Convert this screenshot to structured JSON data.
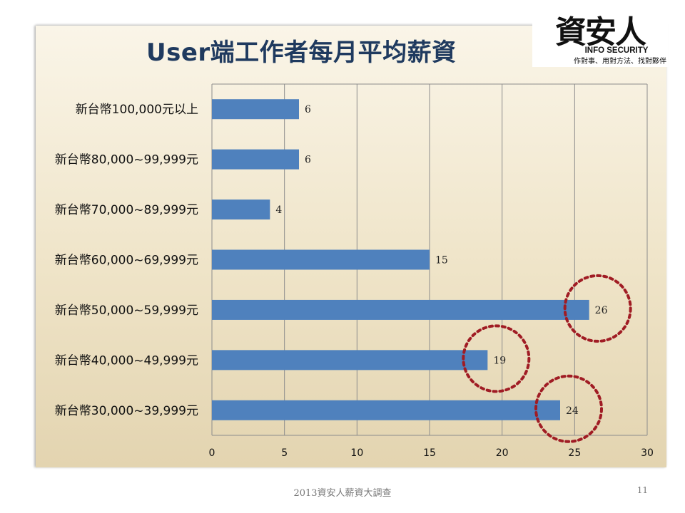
{
  "slide": {
    "title": "User端工作者每月平均薪資",
    "footer": "2013資安人薪資大調查",
    "page_number": "11"
  },
  "logo": {
    "name": "資安人",
    "subtitle": "INFO SECURITY",
    "tagline": "作對事、用對方法、找對夥伴"
  },
  "colors": {
    "bar": "#4f81bd",
    "grid": "#8c8c8c",
    "highlight_circle": "#a01c24",
    "title": "#1f3a5f"
  },
  "chart_data": {
    "type": "bar",
    "orientation": "horizontal",
    "categories": [
      "新台幣100,000元以上",
      "新台幣80,000~99,999元",
      "新台幣70,000~89,999元",
      "新台幣60,000~69,999元",
      "新台幣50,000~59,999元",
      "新台幣40,000~49,999元",
      "新台幣30,000~39,999元"
    ],
    "values": [
      6,
      6,
      4,
      15,
      26,
      19,
      24
    ],
    "xlim": [
      0,
      30
    ],
    "xticks": [
      0,
      5,
      10,
      15,
      20,
      25,
      30
    ],
    "grid": true,
    "legend": "none",
    "highlighted_categories": [
      "新台幣50,000~59,999元",
      "新台幣40,000~49,999元",
      "新台幣30,000~39,999元"
    ]
  }
}
